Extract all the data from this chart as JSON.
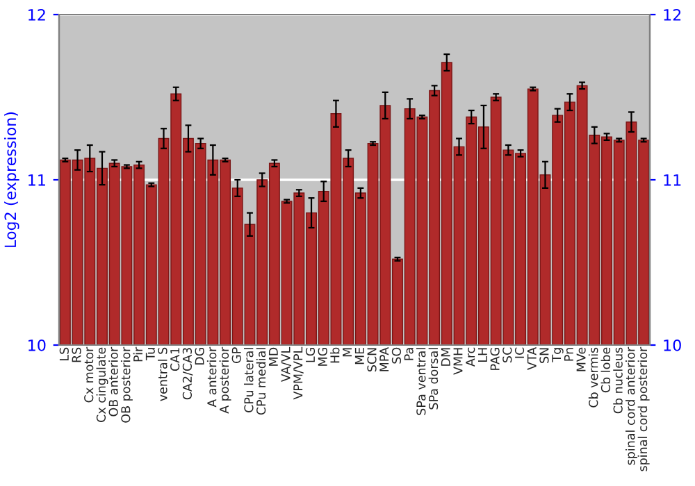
{
  "chart_data": {
    "type": "bar",
    "ylabel": "Log2 (expression)",
    "categories": [
      "LS",
      "RS",
      "Cx motor",
      "Cx cingulate",
      "OB anterior",
      "OB posterior",
      "Pir",
      "Tu",
      "ventral S",
      "CA1",
      "CA2/CA3",
      "DG",
      "A anterior",
      "A posterior",
      "GP",
      "CPu lateral",
      "CPu medial",
      "MD",
      "VA/VL",
      "VPM/VPL",
      "LG",
      "MG",
      "Hb",
      "M",
      "ME",
      "SCN",
      "MPA",
      "SO",
      "Pa",
      "SPa ventral",
      "SPa dorsal",
      "DM",
      "VMH",
      "Arc",
      "LH",
      "PAG",
      "SC",
      "IC",
      "VTA",
      "SN",
      "Tg",
      "Pn",
      "MVe",
      "Cb vermis",
      "Cb lobe",
      "Cb nucleus",
      "spinal cord anterior",
      "spinal cord posterior"
    ],
    "values": [
      11.12,
      11.12,
      11.13,
      11.07,
      11.1,
      11.08,
      11.09,
      10.97,
      11.25,
      11.52,
      11.25,
      11.22,
      11.12,
      11.12,
      10.95,
      10.73,
      11.0,
      11.1,
      10.87,
      10.92,
      10.8,
      10.93,
      11.4,
      11.13,
      10.92,
      11.22,
      11.45,
      10.52,
      11.43,
      11.38,
      11.54,
      11.71,
      11.2,
      11.38,
      11.32,
      11.5,
      11.18,
      11.16,
      11.55,
      11.03,
      11.39,
      11.47,
      11.57,
      11.27,
      11.26,
      11.24,
      11.35,
      11.24
    ],
    "errors": [
      0.01,
      0.06,
      0.08,
      0.1,
      0.02,
      0.01,
      0.02,
      0.01,
      0.06,
      0.04,
      0.08,
      0.03,
      0.09,
      0.01,
      0.05,
      0.07,
      0.04,
      0.02,
      0.01,
      0.02,
      0.09,
      0.06,
      0.08,
      0.05,
      0.03,
      0.01,
      0.08,
      0.01,
      0.06,
      0.01,
      0.03,
      0.05,
      0.05,
      0.04,
      0.13,
      0.02,
      0.03,
      0.02,
      0.01,
      0.08,
      0.04,
      0.05,
      0.02,
      0.05,
      0.02,
      0.01,
      0.06,
      0.01
    ],
    "color": "#b02a2a",
    "ylim": [
      10,
      12
    ],
    "yticks": [
      10,
      11,
      12
    ],
    "y2lim": [
      10,
      12
    ],
    "y2ticks": [
      10,
      11,
      12
    ],
    "grid": "y"
  }
}
